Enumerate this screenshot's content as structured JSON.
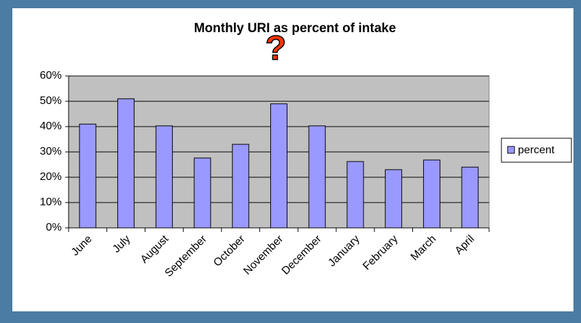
{
  "chart_data": {
    "type": "bar",
    "title": "Monthly URI as percent of intake",
    "annotation": "?",
    "categories": [
      "June",
      "July",
      "August",
      "September",
      "October",
      "November",
      "December",
      "January",
      "February",
      "March",
      "April"
    ],
    "series": [
      {
        "name": "percent",
        "color": "#9999ff",
        "values": [
          41,
          51,
          40.3,
          27.6,
          33,
          49,
          40.3,
          26.2,
          23,
          26.8,
          24
        ]
      }
    ],
    "ylim": [
      0,
      60
    ],
    "yticks": [
      {
        "value": 0,
        "label": "0%"
      },
      {
        "value": 10,
        "label": "10%"
      },
      {
        "value": 20,
        "label": "20%"
      },
      {
        "value": 30,
        "label": "30%"
      },
      {
        "value": 40,
        "label": "40%"
      },
      {
        "value": 50,
        "label": "50%"
      },
      {
        "value": 60,
        "label": "60%"
      }
    ],
    "grid": true,
    "legend": "right"
  }
}
